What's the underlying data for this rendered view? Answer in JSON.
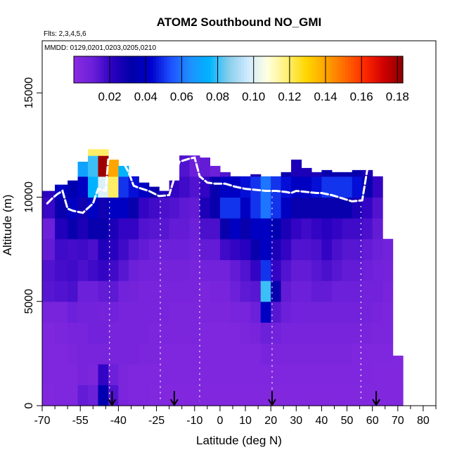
{
  "chart_data": {
    "type": "heatmap",
    "title": "ATOM2 Southbound NO_GMI",
    "subtitle_flights": "Flts: 2,3,4,5,6",
    "subtitle_dates": "MMDD: 0129,0201,0203,0205,0210",
    "xlabel": "Latitude (deg N)",
    "ylabel": "Altitude (m)",
    "xlim": [
      -70,
      85
    ],
    "ylim": [
      0,
      17500
    ],
    "x_ticks": [
      {
        "value": -70,
        "label": "-70"
      },
      {
        "value": -55,
        "label": "-55"
      },
      {
        "value": -40,
        "label": "-40"
      },
      {
        "value": -25,
        "label": "-25"
      },
      {
        "value": -10,
        "label": "-10"
      },
      {
        "value": 0,
        "label": "0"
      },
      {
        "value": 10,
        "label": "10"
      },
      {
        "value": 20,
        "label": "20"
      },
      {
        "value": 30,
        "label": "30"
      },
      {
        "value": 40,
        "label": "40"
      },
      {
        "value": 50,
        "label": "50"
      },
      {
        "value": 60,
        "label": "60"
      },
      {
        "value": 70,
        "label": "70"
      },
      {
        "value": 80,
        "label": "80"
      }
    ],
    "x_minor_ticks": [
      -65,
      -60,
      -50,
      -45,
      -35,
      -30,
      -20,
      -15,
      -5,
      5,
      15,
      25,
      35,
      45,
      55,
      65,
      75,
      85
    ],
    "y_ticks": [
      {
        "value": 0,
        "label": "0"
      },
      {
        "value": 5000,
        "label": "5000"
      },
      {
        "value": 10000,
        "label": "10000"
      },
      {
        "value": 15000,
        "label": "15000"
      }
    ],
    "colorbar": {
      "min": 0.0,
      "max": 0.183,
      "ticks": [
        {
          "value": 0.02,
          "label": "0.02"
        },
        {
          "value": 0.04,
          "label": "0.04"
        },
        {
          "value": 0.06,
          "label": "0.06"
        },
        {
          "value": 0.08,
          "label": "0.08"
        },
        {
          "value": 0.1,
          "label": "0.10"
        },
        {
          "value": 0.12,
          "label": "0.12"
        },
        {
          "value": 0.14,
          "label": "0.14"
        },
        {
          "value": 0.16,
          "label": "0.16"
        },
        {
          "value": 0.18,
          "label": "0.18"
        }
      ],
      "colors": [
        "#8a2be2",
        "#6a1fd8",
        "#2a00c0",
        "#0000a8",
        "#0000cd",
        "#1e50ff",
        "#1e90ff",
        "#00b4ff",
        "#87ceeb",
        "#cfeaff",
        "#ffffe0",
        "#fff176",
        "#ffd700",
        "#ffa500",
        "#ff6a00",
        "#ff2a00",
        "#d00000",
        "#8b0000"
      ]
    },
    "lat_bins": [
      -68,
      -62,
      -58,
      -54,
      -50,
      -46,
      -42,
      -38,
      -34,
      -30,
      -26,
      -22,
      -18,
      -14,
      -10,
      -6,
      -2,
      2,
      6,
      10,
      14,
      18,
      22,
      26,
      30,
      34,
      38,
      42,
      46,
      50,
      54,
      58,
      62,
      66,
      70
    ],
    "alt_levels": [
      0,
      1000,
      2000,
      3000,
      4000,
      5000,
      6000,
      7000,
      8000,
      9000,
      10000,
      11000,
      12000
    ],
    "tops": [
      10300,
      10600,
      10800,
      11700,
      12300,
      12300,
      11800,
      11500,
      11000,
      10700,
      10500,
      10300,
      10800,
      12000,
      12000,
      11900,
      11500,
      11200,
      11000,
      11000,
      11100,
      11000,
      11000,
      11200,
      11800,
      11400,
      11200,
      11300,
      11200,
      11200,
      11300,
      11300,
      11000,
      8000,
      2400
    ],
    "values": [
      [
        0.003,
        0.004,
        0.004,
        0.004,
        0.006,
        0.014,
        0.015,
        0.012,
        0.01,
        0.019,
        0.021,
        0.025,
        0.05
      ],
      [
        0.004,
        0.004,
        0.004,
        0.005,
        0.006,
        0.015,
        0.017,
        0.018,
        0.024,
        0.03,
        0.04,
        0.06,
        0.07
      ],
      [
        0.004,
        0.004,
        0.005,
        0.006,
        0.01,
        0.016,
        0.018,
        0.017,
        0.03,
        0.04,
        0.035,
        0.08,
        0.09
      ],
      [
        0.012,
        0.006,
        0.006,
        0.006,
        0.008,
        0.01,
        0.016,
        0.018,
        0.025,
        0.028,
        0.04,
        0.07,
        0.11
      ],
      [
        0.01,
        0.005,
        0.006,
        0.008,
        0.008,
        0.01,
        0.018,
        0.016,
        0.03,
        0.04,
        0.075,
        0.08,
        0.12
      ],
      [
        0.035,
        0.02,
        0.006,
        0.008,
        0.007,
        0.012,
        0.02,
        0.024,
        0.03,
        0.028,
        0.1,
        0.18,
        0.12
      ],
      [
        0.015,
        0.01,
        0.006,
        0.006,
        0.008,
        0.013,
        0.018,
        0.022,
        0.025,
        0.04,
        0.12,
        0.14,
        0.1
      ],
      [
        0.005,
        0.005,
        0.006,
        0.006,
        0.006,
        0.008,
        0.014,
        0.018,
        0.02,
        0.04,
        0.05,
        0.075,
        0.07
      ],
      [
        0.004,
        0.004,
        0.006,
        0.006,
        0.006,
        0.007,
        0.01,
        0.014,
        0.02,
        0.03,
        0.045,
        0.05,
        0.06
      ],
      [
        0.004,
        0.004,
        0.005,
        0.006,
        0.006,
        0.006,
        0.008,
        0.012,
        0.015,
        0.02,
        0.04,
        0.05,
        0.05
      ],
      [
        0.003,
        0.004,
        0.005,
        0.005,
        0.006,
        0.006,
        0.008,
        0.01,
        0.014,
        0.018,
        0.03,
        0.04,
        0.045
      ],
      [
        0.003,
        0.004,
        0.004,
        0.005,
        0.006,
        0.006,
        0.007,
        0.01,
        0.014,
        0.016,
        0.025,
        0.035,
        0.04
      ],
      [
        0.003,
        0.004,
        0.004,
        0.005,
        0.005,
        0.006,
        0.007,
        0.01,
        0.012,
        0.015,
        0.02,
        0.025,
        0.03
      ],
      [
        0.003,
        0.004,
        0.004,
        0.005,
        0.005,
        0.006,
        0.007,
        0.01,
        0.012,
        0.013,
        0.018,
        0.015,
        0.01
      ],
      [
        0.003,
        0.004,
        0.004,
        0.005,
        0.005,
        0.006,
        0.006,
        0.008,
        0.01,
        0.012,
        0.015,
        0.01,
        0.01
      ],
      [
        0.003,
        0.004,
        0.004,
        0.004,
        0.005,
        0.005,
        0.008,
        0.012,
        0.016,
        0.025,
        0.02,
        0.012,
        0.01
      ],
      [
        0.003,
        0.004,
        0.004,
        0.004,
        0.005,
        0.006,
        0.008,
        0.012,
        0.016,
        0.03,
        0.03,
        0.01,
        0.01
      ],
      [
        0.003,
        0.004,
        0.004,
        0.004,
        0.005,
        0.006,
        0.008,
        0.018,
        0.03,
        0.05,
        0.04,
        0.015,
        0.015
      ],
      [
        0.003,
        0.004,
        0.004,
        0.004,
        0.006,
        0.01,
        0.012,
        0.02,
        0.04,
        0.05,
        0.04,
        0.02,
        0.015
      ],
      [
        0.003,
        0.004,
        0.004,
        0.005,
        0.006,
        0.013,
        0.015,
        0.022,
        0.03,
        0.04,
        0.045,
        0.02,
        0.015
      ],
      [
        0.003,
        0.004,
        0.004,
        0.006,
        0.01,
        0.014,
        0.02,
        0.03,
        0.04,
        0.05,
        0.05,
        0.025,
        0.015
      ],
      [
        0.003,
        0.004,
        0.006,
        0.01,
        0.04,
        0.08,
        0.05,
        0.04,
        0.04,
        0.06,
        0.06,
        0.03,
        0.015
      ],
      [
        0.003,
        0.004,
        0.005,
        0.008,
        0.014,
        0.03,
        0.02,
        0.025,
        0.035,
        0.05,
        0.05,
        0.03,
        0.015
      ],
      [
        0.003,
        0.004,
        0.005,
        0.006,
        0.01,
        0.012,
        0.015,
        0.02,
        0.025,
        0.04,
        0.045,
        0.03,
        0.015
      ],
      [
        0.003,
        0.004,
        0.005,
        0.006,
        0.008,
        0.01,
        0.012,
        0.015,
        0.02,
        0.03,
        0.04,
        0.025,
        0.015
      ],
      [
        0.003,
        0.004,
        0.005,
        0.006,
        0.008,
        0.01,
        0.012,
        0.015,
        0.018,
        0.03,
        0.04,
        0.025,
        0.015
      ],
      [
        0.003,
        0.004,
        0.005,
        0.006,
        0.008,
        0.012,
        0.014,
        0.016,
        0.02,
        0.03,
        0.045,
        0.025,
        0.015
      ],
      [
        0.003,
        0.004,
        0.005,
        0.006,
        0.008,
        0.012,
        0.016,
        0.02,
        0.022,
        0.03,
        0.05,
        0.03,
        0.015
      ],
      [
        0.003,
        0.004,
        0.005,
        0.006,
        0.008,
        0.01,
        0.014,
        0.016,
        0.02,
        0.03,
        0.05,
        0.03,
        0.015
      ],
      [
        0.003,
        0.004,
        0.005,
        0.006,
        0.008,
        0.01,
        0.012,
        0.014,
        0.018,
        0.03,
        0.05,
        0.03,
        0.015
      ],
      [
        0.003,
        0.004,
        0.004,
        0.006,
        0.008,
        0.01,
        0.012,
        0.014,
        0.018,
        0.025,
        0.045,
        0.03,
        0.015
      ],
      [
        0.003,
        0.004,
        0.004,
        0.006,
        0.007,
        0.008,
        0.01,
        0.012,
        0.016,
        0.02,
        0.03,
        0.025,
        0.015
      ],
      [
        0.003,
        0.003,
        0.004,
        0.005,
        0.006,
        0.008,
        0.008,
        0.01,
        0.012,
        0.015,
        0.02,
        0.015,
        0.01
      ],
      [
        0.003,
        0.003,
        0.004,
        0.005,
        0.005,
        0.006,
        0.007,
        0.008,
        0.008,
        0.008,
        0.008,
        0.008,
        0.008
      ],
      [
        0.003,
        0.003,
        0.003,
        0.003,
        0.003,
        0.003,
        0.003,
        0.003,
        0.003,
        0.003,
        0.003,
        0.003,
        0.003
      ]
    ],
    "flight_track": [
      [
        -68,
        9700
      ],
      [
        -66,
        9950
      ],
      [
        -64,
        10150
      ],
      [
        -62,
        10300
      ],
      [
        -60,
        9450
      ],
      [
        -58,
        9350
      ],
      [
        -56,
        9300
      ],
      [
        -54,
        9250
      ],
      [
        -50,
        9700
      ],
      [
        -48,
        10400
      ],
      [
        -45,
        10300
      ],
      [
        -44,
        11800
      ],
      [
        -40,
        12100
      ],
      [
        -36,
        11200
      ],
      [
        -34,
        10550
      ],
      [
        -32,
        10450
      ],
      [
        -28,
        10300
      ],
      [
        -24,
        10050
      ],
      [
        -20,
        10100
      ],
      [
        -16,
        11700
      ],
      [
        -12,
        11850
      ],
      [
        -10,
        11900
      ],
      [
        -8,
        11000
      ],
      [
        -5,
        10700
      ],
      [
        -2,
        10650
      ],
      [
        0,
        10650
      ],
      [
        2,
        10650
      ],
      [
        6,
        10500
      ],
      [
        10,
        10400
      ],
      [
        14,
        10350
      ],
      [
        18,
        10300
      ],
      [
        20,
        10300
      ],
      [
        22,
        10300
      ],
      [
        26,
        10250
      ],
      [
        28,
        10200
      ],
      [
        30,
        10300
      ],
      [
        34,
        10250
      ],
      [
        38,
        10200
      ],
      [
        40,
        10200
      ],
      [
        44,
        10100
      ],
      [
        48,
        9950
      ],
      [
        52,
        9800
      ],
      [
        56,
        9850
      ],
      [
        58,
        11350
      ],
      [
        60,
        11400
      ],
      [
        64,
        11300
      ],
      [
        68,
        11300
      ]
    ],
    "descent_profiles": [
      {
        "lat": -43.5,
        "alt_top": 9800
      },
      {
        "lat": -23.5,
        "alt_top": 10100
      },
      {
        "lat": -8.0,
        "alt_top": 11000
      },
      {
        "lat": 20.5,
        "alt_top": 10300
      },
      {
        "lat": 55.5,
        "alt_top": 9850
      }
    ],
    "arrows": [
      {
        "lat": -42.5,
        "alt_top": 700
      },
      {
        "lat": -18.0,
        "alt_top": 700
      },
      {
        "lat": 20.5,
        "alt_top": 700
      },
      {
        "lat": 61.5,
        "alt_top": 700
      }
    ]
  }
}
